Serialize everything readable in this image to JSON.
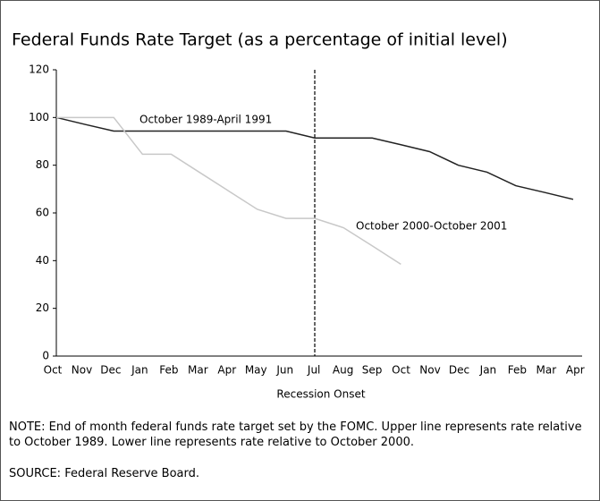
{
  "chart_data": {
    "type": "line",
    "title": "Federal Funds Rate Target (as a percentage of initial level)",
    "x_label": "Recession Onset",
    "categories": [
      "Oct",
      "Nov",
      "Dec",
      "Jan",
      "Feb",
      "Mar",
      "Apr",
      "May",
      "Jun",
      "Jul",
      "Aug",
      "Sep",
      "Oct",
      "Nov",
      "Dec",
      "Jan",
      "Feb",
      "Mar",
      "Apr"
    ],
    "series": [
      {
        "name": "October 1989-April 1991",
        "color": "#222222",
        "values": [
          100,
          97.1,
          94.3,
          94.3,
          94.3,
          94.3,
          94.3,
          94.3,
          94.3,
          91.4,
          91.4,
          91.4,
          88.6,
          85.7,
          80,
          77.1,
          71.4,
          68.6,
          65.7
        ]
      },
      {
        "name": "October 2000-October 2001",
        "color": "#c8c8c8",
        "values": [
          100,
          100,
          100,
          84.6,
          84.6,
          76.9,
          69.2,
          61.5,
          57.7,
          57.7,
          53.8,
          46.2,
          38.5,
          null,
          null,
          null,
          null,
          null,
          null
        ]
      }
    ],
    "ylim": [
      0,
      120
    ],
    "yticks": [
      0,
      20,
      40,
      60,
      80,
      100,
      120
    ],
    "vline_index": 9,
    "note": "NOTE: End of month federal funds rate target set by the FOMC.  Upper line represents rate relative to October 1989. Lower line represents rate relative to October 2000.",
    "source": "SOURCE: Federal Reserve Board."
  }
}
